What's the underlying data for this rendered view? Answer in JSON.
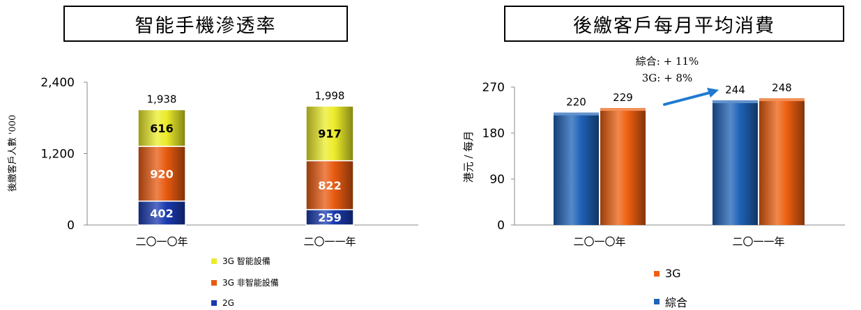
{
  "left": {
    "title": "智能手機滲透率",
    "chart_data": {
      "type": "bar",
      "stacked": true,
      "categories": [
        "二〇一〇年",
        "二〇一一年"
      ],
      "series": [
        {
          "name": "2G",
          "values": [
            402,
            259
          ],
          "color": "#1a3ab0"
        },
        {
          "name": "3G 非智能設備",
          "values": [
            920,
            822
          ],
          "color": "#e85a10"
        },
        {
          "name": "3G 智能設備",
          "values": [
            616,
            917
          ],
          "color": "#ecec2a"
        }
      ],
      "totals": [
        1938,
        1998
      ],
      "total_labels": [
        "1,938",
        "1,998"
      ],
      "ylabel": "後繳客戶人數 '000",
      "ylim": [
        0,
        2400
      ],
      "yticks": [
        0,
        1200,
        2400
      ],
      "ytick_labels": [
        "0",
        "1,200",
        "2,400"
      ],
      "legend_position": "bottom",
      "legend_order": [
        "3G 智能設備",
        "3G 非智能設備",
        "2G"
      ],
      "grid": false
    }
  },
  "right": {
    "title": "後繳客戶每月平均消費",
    "chart_data": {
      "type": "bar",
      "categories": [
        "二〇一〇年",
        "二〇一一年"
      ],
      "series": [
        {
          "name": "綜合",
          "values": [
            220,
            244
          ],
          "color": "#1f63b8"
        },
        {
          "name": "3G",
          "values": [
            229,
            248
          ],
          "color": "#ee6010"
        }
      ],
      "ylabel": "港元 / 每月",
      "ylim": [
        0,
        270
      ],
      "yticks": [
        0,
        90,
        180,
        270
      ],
      "annotation": [
        "綜合: + 11%",
        "3G: + 8%"
      ],
      "annotation_arrow_color": "#1f7ad0",
      "legend_position": "bottom",
      "legend_order": [
        "3G",
        "綜合"
      ],
      "grid": false
    }
  }
}
